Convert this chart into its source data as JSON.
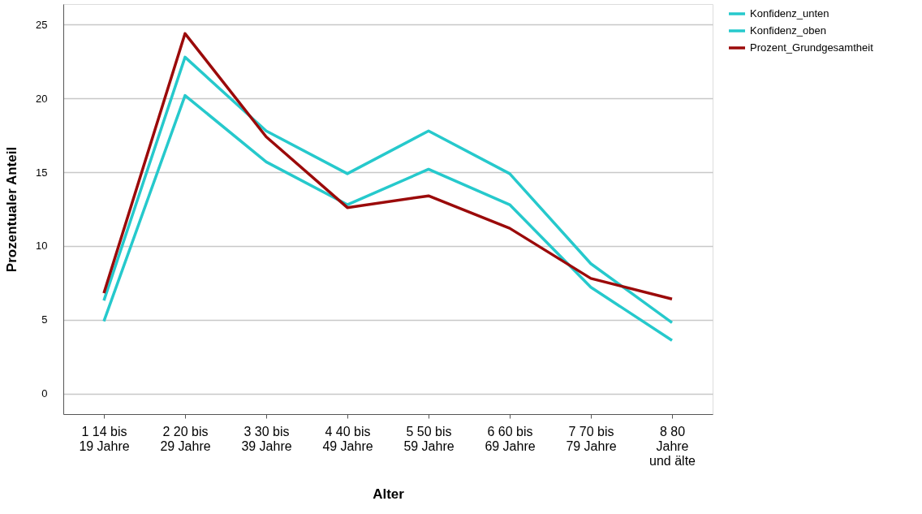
{
  "chart_data": {
    "type": "line",
    "xlabel": "Alter",
    "ylabel": "Prozentualer Anteil",
    "categories": [
      "1 14 bis 19 Jahre",
      "2 20 bis 29 Jahre",
      "3 30 bis 39 Jahre",
      "4 40 bis 49 Jahre",
      "5 50 bis 59 Jahre",
      "6 60 bis 69 Jahre",
      "7 70 bis 79 Jahre",
      "8 80 Jahre und älte"
    ],
    "series": [
      {
        "name": "Konfidenz_unten",
        "color": "#26c9cc",
        "values": [
          4.9,
          20.2,
          15.7,
          12.8,
          15.2,
          12.8,
          7.2,
          3.6
        ]
      },
      {
        "name": "Konfidenz_oben",
        "color": "#26c9cc",
        "values": [
          6.3,
          22.8,
          17.8,
          14.9,
          17.8,
          14.9,
          8.8,
          4.8
        ]
      },
      {
        "name": "Prozent_Grundgesamtheit",
        "color": "#9b0a0a",
        "values": [
          6.8,
          24.4,
          17.4,
          12.6,
          13.4,
          11.2,
          7.8,
          6.4
        ]
      }
    ],
    "ylim": [
      -1.4,
      26.4
    ],
    "yticks": [
      0,
      5,
      10,
      15,
      20,
      25
    ],
    "grid": "y",
    "legend": "top right",
    "marker": "none",
    "line_style": "solid"
  }
}
